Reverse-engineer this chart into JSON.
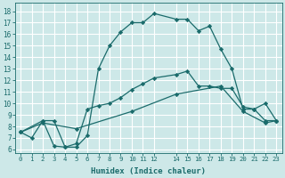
{
  "xlabel": "Humidex (Indice chaleur)",
  "background_color": "#cde8e8",
  "grid_color": "#ffffff",
  "line_color": "#1a6b6b",
  "xlim": [
    -0.5,
    23.5
  ],
  "ylim": [
    5.7,
    18.7
  ],
  "yticks": [
    6,
    7,
    8,
    9,
    10,
    11,
    12,
    13,
    14,
    15,
    16,
    17,
    18
  ],
  "xticks": [
    0,
    1,
    2,
    3,
    4,
    5,
    6,
    7,
    8,
    9,
    10,
    11,
    12,
    14,
    15,
    16,
    17,
    18,
    19,
    20,
    21,
    22,
    23
  ],
  "line1_x": [
    0,
    1,
    2,
    3,
    4,
    5,
    6,
    7,
    8,
    9,
    10,
    11,
    12,
    14,
    15,
    16,
    17,
    18,
    19,
    20,
    21,
    22,
    23
  ],
  "line1_y": [
    7.5,
    7.0,
    8.5,
    6.3,
    6.2,
    6.2,
    7.2,
    13.0,
    15.0,
    16.2,
    17.0,
    17.0,
    17.8,
    17.3,
    17.3,
    16.3,
    16.7,
    14.7,
    13.0,
    9.5,
    9.5,
    10.0,
    8.5
  ],
  "line2_x": [
    0,
    2,
    3,
    4,
    5,
    6,
    7,
    8,
    9,
    10,
    11,
    12,
    14,
    15,
    16,
    17,
    18,
    19,
    20,
    21,
    22,
    23
  ],
  "line2_y": [
    7.5,
    8.5,
    8.5,
    6.2,
    6.5,
    9.5,
    9.8,
    10.0,
    10.5,
    11.2,
    11.7,
    12.2,
    12.5,
    12.8,
    11.5,
    11.5,
    11.3,
    11.3,
    9.7,
    9.5,
    8.5,
    8.5
  ],
  "line3_x": [
    0,
    2,
    5,
    10,
    14,
    18,
    20,
    22,
    23
  ],
  "line3_y": [
    7.5,
    8.3,
    7.8,
    9.3,
    10.8,
    11.5,
    9.3,
    8.3,
    8.5
  ]
}
